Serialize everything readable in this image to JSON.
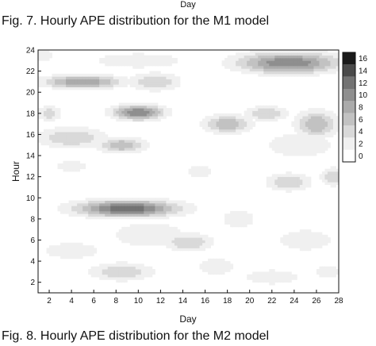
{
  "header": {
    "top_axis_fragment": "Day",
    "fig7_caption": "Fig. 7. Hourly APE distribution for the M1 model",
    "fig8_caption": "Fig. 8. Hourly APE distribution for the M2 model"
  },
  "chart_data": {
    "type": "heatmap",
    "title": "",
    "xlabel": "Day",
    "ylabel": "Hour",
    "xlim": [
      1,
      28
    ],
    "ylim": [
      1,
      24
    ],
    "x_ticks": [
      2,
      4,
      6,
      8,
      10,
      12,
      14,
      16,
      18,
      20,
      22,
      24,
      26,
      28
    ],
    "y_ticks": [
      2,
      4,
      6,
      8,
      10,
      12,
      14,
      16,
      18,
      20,
      22,
      24
    ],
    "colorbar": {
      "levels": [
        0,
        2,
        4,
        6,
        8,
        10,
        12,
        14,
        16
      ],
      "colors": [
        "#ffffff",
        "#f0f0f0",
        "#d9d9d9",
        "#c2c2c2",
        "#ababab",
        "#8f8f8f",
        "#737373",
        "#4a4a4a",
        "#1a1a1a"
      ]
    },
    "hotspots": [
      {
        "x": 9.0,
        "y": 9.0,
        "sx": 3.2,
        "sy": 0.55,
        "v": 14
      },
      {
        "x": 10.0,
        "y": 18.1,
        "sx": 1.6,
        "sy": 0.5,
        "v": 12
      },
      {
        "x": 5.0,
        "y": 21.0,
        "sx": 2.5,
        "sy": 0.45,
        "v": 10
      },
      {
        "x": 23.5,
        "y": 22.8,
        "sx": 3.2,
        "sy": 0.7,
        "v": 12
      },
      {
        "x": 11.5,
        "y": 21.0,
        "sx": 1.6,
        "sy": 0.6,
        "v": 6
      },
      {
        "x": 4.0,
        "y": 15.7,
        "sx": 2.2,
        "sy": 0.7,
        "v": 6
      },
      {
        "x": 8.5,
        "y": 15.0,
        "sx": 1.5,
        "sy": 0.5,
        "v": 8
      },
      {
        "x": 2.0,
        "y": 18.0,
        "sx": 0.7,
        "sy": 0.5,
        "v": 6
      },
      {
        "x": 18.0,
        "y": 17.0,
        "sx": 1.5,
        "sy": 0.6,
        "v": 8
      },
      {
        "x": 21.5,
        "y": 18.0,
        "sx": 1.4,
        "sy": 0.5,
        "v": 6
      },
      {
        "x": 26.0,
        "y": 17.0,
        "sx": 1.3,
        "sy": 0.9,
        "v": 8
      },
      {
        "x": 23.5,
        "y": 11.5,
        "sx": 1.4,
        "sy": 0.6,
        "v": 6
      },
      {
        "x": 27.5,
        "y": 12.0,
        "sx": 0.8,
        "sy": 0.6,
        "v": 6
      },
      {
        "x": 14.5,
        "y": 5.8,
        "sx": 1.6,
        "sy": 0.6,
        "v": 6
      },
      {
        "x": 8.5,
        "y": 3.0,
        "sx": 2.0,
        "sy": 0.6,
        "v": 6
      },
      {
        "x": 17.0,
        "y": 3.5,
        "sx": 1.2,
        "sy": 0.6,
        "v": 4
      },
      {
        "x": 11.0,
        "y": 6.5,
        "sx": 2.5,
        "sy": 0.9,
        "v": 4
      },
      {
        "x": 4.0,
        "y": 5.0,
        "sx": 2.5,
        "sy": 0.8,
        "v": 3
      },
      {
        "x": 25.0,
        "y": 6.0,
        "sx": 2.5,
        "sy": 1.0,
        "v": 3
      },
      {
        "x": 19.0,
        "y": 8.0,
        "sx": 1.5,
        "sy": 0.8,
        "v": 3
      },
      {
        "x": 24.5,
        "y": 15.0,
        "sx": 3.0,
        "sy": 1.2,
        "v": 3
      },
      {
        "x": 10.0,
        "y": 23.0,
        "sx": 4.0,
        "sy": 0.7,
        "v": 3
      },
      {
        "x": 4.0,
        "y": 13.0,
        "sx": 1.5,
        "sy": 0.5,
        "v": 3
      },
      {
        "x": 15.5,
        "y": 12.5,
        "sx": 1.2,
        "sy": 0.6,
        "v": 3
      },
      {
        "x": 22.0,
        "y": 2.5,
        "sx": 2.5,
        "sy": 0.7,
        "v": 3
      },
      {
        "x": 27.0,
        "y": 3.0,
        "sx": 1.0,
        "sy": 0.7,
        "v": 3
      },
      {
        "x": 1.5,
        "y": 23.5,
        "sx": 0.8,
        "sy": 0.5,
        "v": 3
      }
    ]
  }
}
